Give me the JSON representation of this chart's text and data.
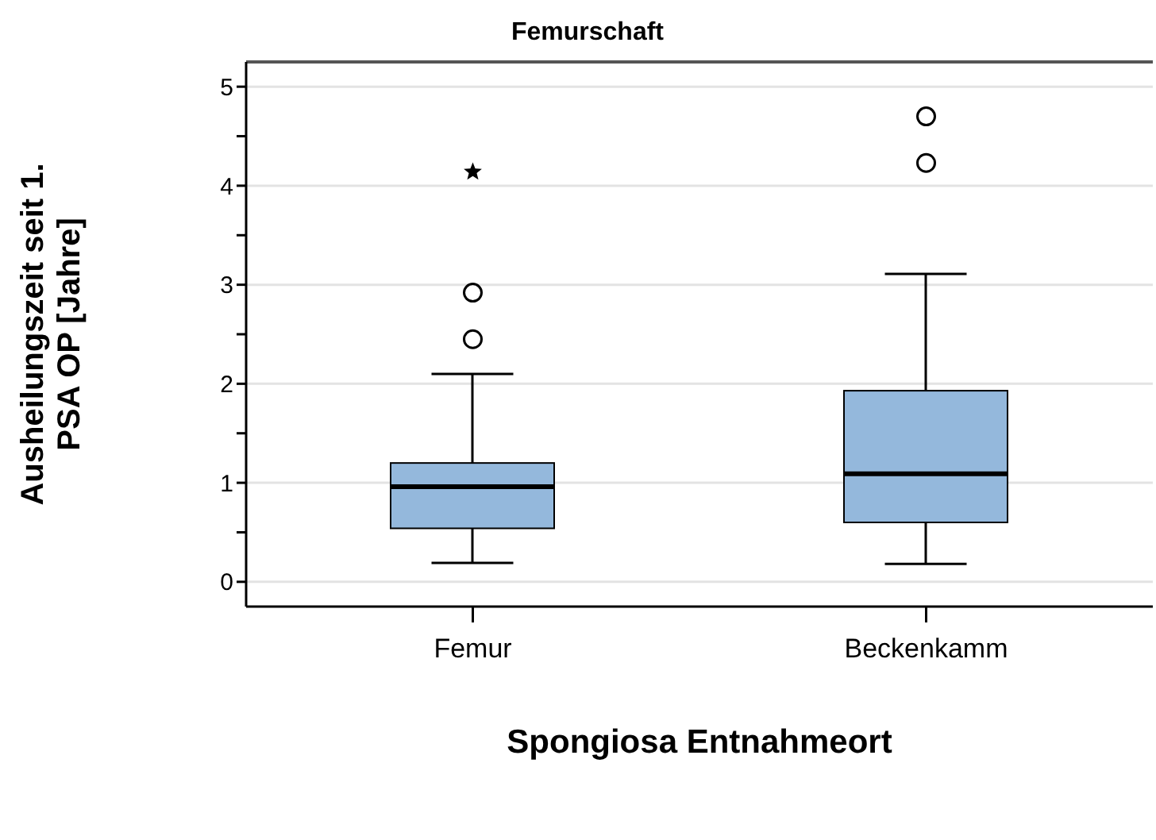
{
  "chart_data": {
    "type": "box",
    "title": "Femurschaft",
    "xlabel": "Spongiosa Entnahmeort",
    "ylabel": "Ausheilungszeit seit 1. PSA OP [Jahre]",
    "categories": [
      "Femur",
      "Beckenkamm"
    ],
    "color": "#94b8dc",
    "boxes": [
      {
        "low": 0.19,
        "q1": 0.54,
        "median": 0.96,
        "q3": 1.2,
        "high": 2.1,
        "outliers": [
          2.45,
          2.92,
          4.14
        ]
      },
      {
        "low": 0.18,
        "q1": 0.6,
        "median": 1.09,
        "q3": 1.93,
        "high": 3.11,
        "outliers": [
          4.23,
          4.7
        ]
      }
    ],
    "ylim": [
      -0.25,
      5.25
    ],
    "yticks": [
      0,
      {
        "value": 0.5,
        "label": null
      },
      1,
      {
        "value": 1.5,
        "label": null
      },
      2,
      {
        "value": 2.5,
        "label": null
      },
      3,
      {
        "value": 3.5,
        "label": null
      },
      4,
      {
        "value": 4.5,
        "label": null
      },
      5
    ],
    "grid": "y"
  }
}
